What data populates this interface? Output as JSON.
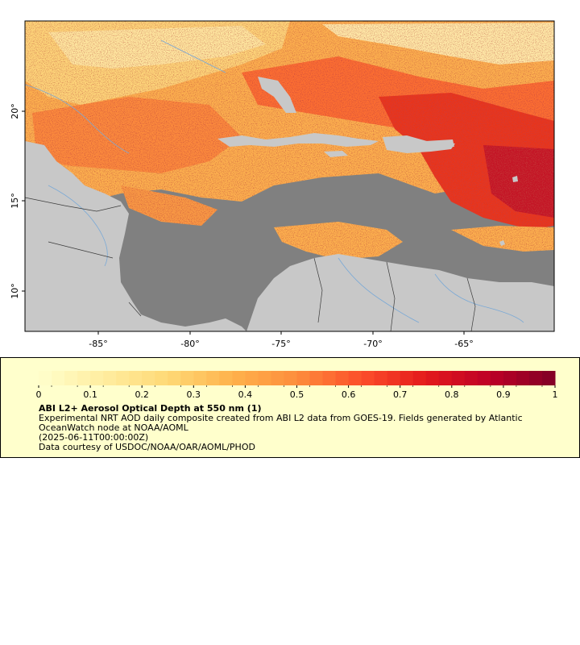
{
  "map": {
    "lon_ticks": [
      "-85°",
      "-80°",
      "-75°",
      "-70°",
      "-65°"
    ],
    "lat_ticks": [
      "20°",
      "15°",
      "10°"
    ],
    "colors": {
      "land": "#c8c8c8",
      "no_data": "#808080",
      "rivers": "#7aa9d6",
      "borders": "#000000"
    }
  },
  "legend": {
    "color_ticks": [
      "0",
      "0.1",
      "0.2",
      "0.3",
      "0.4",
      "0.5",
      "0.6",
      "0.7",
      "0.8",
      "0.9",
      "1"
    ],
    "palette": [
      "#ffffcc",
      "#ffeda0",
      "#fed976",
      "#feb24c",
      "#fd8d3c",
      "#fc4e2a",
      "#e31a1c",
      "#bd0026",
      "#800026"
    ],
    "title": "ABI L2+ Aerosol Optical Depth at 550 nm (1)",
    "description": "Experimental NRT AOD daily composite created from ABI L2 data from GOES-19. Fields generated by Atlantic OceanWatch node at NOAA/AOML",
    "date": "(2025-06-11T00:00:00Z)",
    "credit": "Data courtesy of USDOC/NOAA/OAR/AOML/PHOD"
  }
}
